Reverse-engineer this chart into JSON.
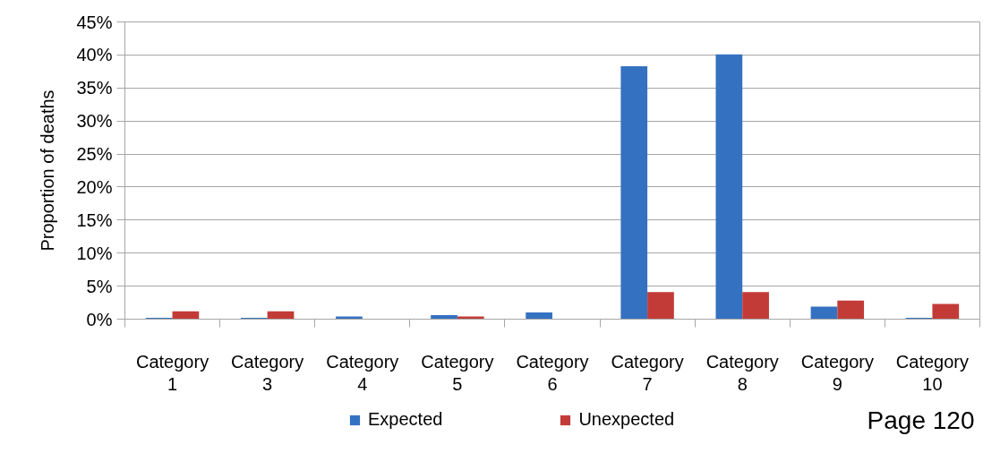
{
  "chart_data": {
    "type": "bar",
    "ylabel": "Proportion of deaths",
    "categories": [
      "Category 1",
      "Category 3",
      "Category 4",
      "Category 5",
      "Category 6",
      "Category 7",
      "Category 8",
      "Category 9",
      "Category 10"
    ],
    "series": [
      {
        "name": "Expected",
        "color": "#3571c1",
        "values": [
          0.2,
          0.2,
          0.4,
          0.6,
          1.0,
          38.3,
          40.1,
          1.9,
          0.2
        ]
      },
      {
        "name": "Unexpected",
        "color": "#c33b37",
        "values": [
          1.2,
          1.2,
          0,
          0.4,
          0,
          4.1,
          4.1,
          2.8,
          2.3
        ]
      }
    ],
    "ylim": [
      0,
      45
    ],
    "yticks": [
      {
        "value": 0,
        "label": "0%"
      },
      {
        "value": 5,
        "label": "5%"
      },
      {
        "value": 10,
        "label": "10%"
      },
      {
        "value": 15,
        "label": "15%"
      },
      {
        "value": 20,
        "label": "20%"
      },
      {
        "value": 25,
        "label": "25%"
      },
      {
        "value": 30,
        "label": "30%"
      },
      {
        "value": 35,
        "label": "35%"
      },
      {
        "value": 40,
        "label": "40%"
      },
      {
        "value": 45,
        "label": "45%"
      }
    ],
    "grid": "y",
    "legend": "bottom",
    "annotations": [
      "Page 120"
    ]
  }
}
